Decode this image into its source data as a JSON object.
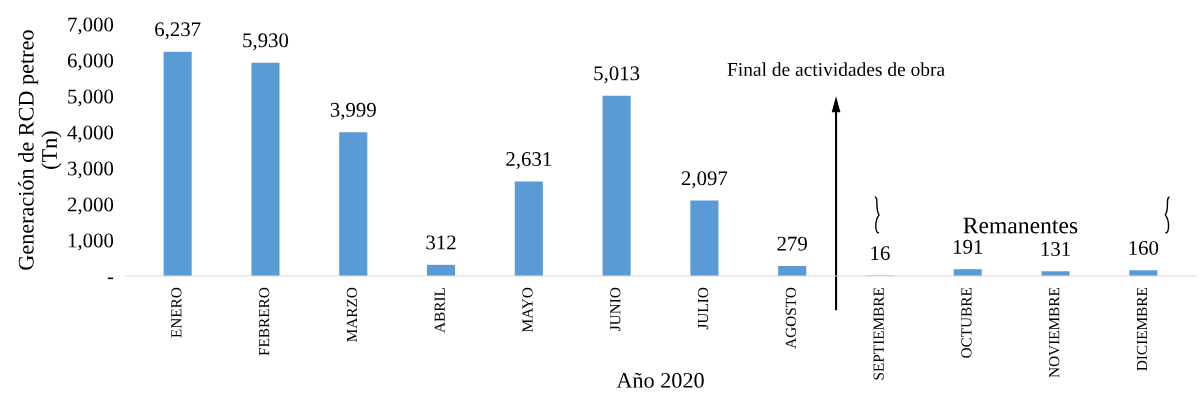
{
  "chart_data": {
    "type": "bar",
    "xlabel": "Año 2020",
    "ylabel": "Generación de RCD petreo\n(Tn)",
    "categories": [
      "ENERO",
      "FEBRERO",
      "MARZO",
      "ABRIL",
      "MAYO",
      "JUNIO",
      "JULIO",
      "AGOSTO",
      "SEPTIEMBRE",
      "OCTUBRE",
      "NOVIEMBRE",
      "DICIEMBRE"
    ],
    "values": [
      6237,
      5930,
      3999,
      312,
      2631,
      5013,
      2097,
      279,
      16,
      191,
      131,
      160
    ],
    "value_labels": [
      "6,237",
      "5,930",
      "3,999",
      "312",
      "2,631",
      "5,013",
      "2,097",
      "279",
      "16",
      "191",
      "131",
      "160"
    ],
    "color": "#5b9bd5",
    "ylim": [
      0,
      7000
    ],
    "yticks": [
      {
        "value": 0,
        "label": "-"
      },
      {
        "value": 1000,
        "label": "1,000"
      },
      {
        "value": 2000,
        "label": "2,000"
      },
      {
        "value": 3000,
        "label": "3,000"
      },
      {
        "value": 4000,
        "label": "4,000"
      },
      {
        "value": 5000,
        "label": "5,000"
      },
      {
        "value": 6000,
        "label": "6,000"
      },
      {
        "value": 7000,
        "label": "7,000"
      }
    ],
    "annotations": [
      "Final de actividades de obra",
      "Remanentes"
    ],
    "grid": false,
    "legend": false
  }
}
